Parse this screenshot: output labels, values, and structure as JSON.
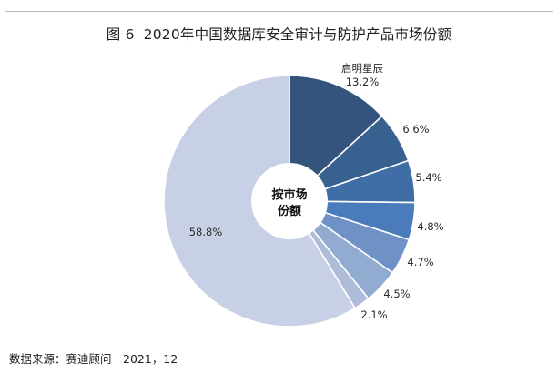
{
  "header": {
    "figure_number": "图 6",
    "title": "2020年中国数据库安全审计与防护产品市场份额"
  },
  "chart_data": {
    "type": "pie",
    "title": "2020年中国数据库安全审计与防护产品市场份额",
    "center_label_line1": "按市场",
    "center_label_line2": "份额",
    "slices": [
      {
        "label": "启明星辰",
        "value": 13.2,
        "value_text": "13.2%",
        "color": "#34547d"
      },
      {
        "label": "",
        "value": 6.6,
        "value_text": "6.6%",
        "color": "#38618f"
      },
      {
        "label": "",
        "value": 5.4,
        "value_text": "5.4%",
        "color": "#3f6da6"
      },
      {
        "label": "",
        "value": 4.8,
        "value_text": "4.8%",
        "color": "#4a7cbb"
      },
      {
        "label": "",
        "value": 4.7,
        "value_text": "4.7%",
        "color": "#6f92c6"
      },
      {
        "label": "",
        "value": 4.5,
        "value_text": "4.5%",
        "color": "#92abd0"
      },
      {
        "label": "",
        "value": 2.1,
        "value_text": "2.1%",
        "color": "#aebcd9"
      },
      {
        "label": "",
        "value": 58.8,
        "value_text": "58.8%",
        "color": "#c7d0e4"
      }
    ]
  },
  "footer": {
    "source": "数据来源：赛迪顾问　2021，12"
  }
}
